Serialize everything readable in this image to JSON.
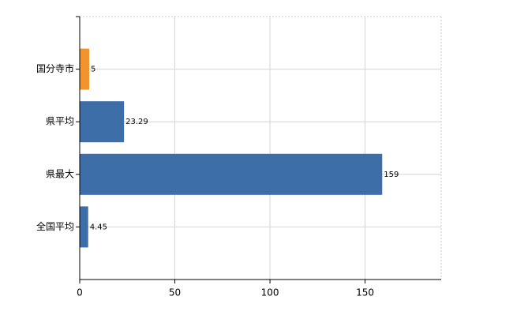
{
  "chart_data": {
    "type": "barh",
    "categories": [
      "国分寺市",
      "県平均",
      "県最大",
      "全国平均"
    ],
    "values": [
      5,
      23.29,
      159,
      4.45
    ],
    "colors": [
      "#f0952e",
      "#3d6ea8",
      "#3d6ea8",
      "#3d6ea8"
    ],
    "xlim": [
      0,
      190
    ],
    "xticks": [
      0,
      50,
      100,
      150
    ],
    "grid": true
  }
}
